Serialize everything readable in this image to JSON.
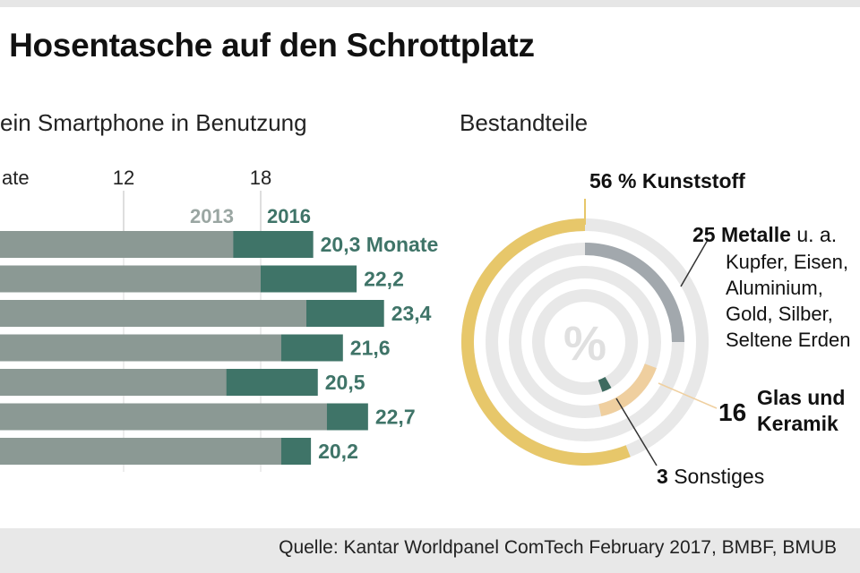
{
  "title": "r Hosentasche auf den Schrottplatz",
  "bar_subtitle": "ein Smartphone in Benutzung",
  "donut_subtitle": "Bestandteile",
  "source": "Quelle: Kantar Worldpanel ComTech February 2017, BMBF, BMUB",
  "colors": {
    "bar_2013": "#8b9994",
    "bar_2016": "#3f7468",
    "label_2016": "#3f7468",
    "label_2013": "#9aa6a2",
    "kunststoff": "#e7c76a",
    "metalle": "#a2a8ad",
    "glas": "#efcf9f",
    "sonstiges": "#3e6b60",
    "track": "#e8e8e8"
  },
  "chart_data": [
    {
      "type": "bar",
      "orientation": "horizontal",
      "axis_label_partial": "ate",
      "x_ticks": [
        12,
        18
      ],
      "legend": [
        "2013",
        "2016"
      ],
      "legend_placement": "top-right",
      "data_label_unit": "Monate",
      "series": [
        {
          "name": "2013",
          "values": [
            16.8,
            18.0,
            20.0,
            18.9,
            16.5,
            20.9,
            18.9
          ]
        },
        {
          "name": "2016",
          "values": [
            20.3,
            22.2,
            23.4,
            21.6,
            20.5,
            22.7,
            20.2
          ]
        }
      ],
      "data_labels": [
        "20,3 Monate",
        "22,2",
        "23,4",
        "21,6",
        "20,5",
        "22,7",
        "20,2"
      ],
      "grid": true
    },
    {
      "type": "pie",
      "style": "concentric-rings",
      "center_label": "%",
      "slices": [
        {
          "value": 56,
          "value_label": "56 %",
          "name": "Kunststoff",
          "detail": ""
        },
        {
          "value": 25,
          "value_label": "25",
          "name": "Metalle",
          "detail": "u. a. Kupfer, Eisen, Aluminium, Gold, Silber, Seltene Erden",
          "detail_lines": [
            "u. a.",
            "Kupfer, Eisen,",
            "Aluminium,",
            "Gold, Silber,",
            "Seltene Erden"
          ]
        },
        {
          "value": 16,
          "value_label": "16",
          "name": "Glas und Keramik",
          "name_lines": [
            "Glas und",
            "Keramik"
          ]
        },
        {
          "value": 3,
          "value_label": "3",
          "name": "Sonstiges"
        }
      ]
    }
  ]
}
